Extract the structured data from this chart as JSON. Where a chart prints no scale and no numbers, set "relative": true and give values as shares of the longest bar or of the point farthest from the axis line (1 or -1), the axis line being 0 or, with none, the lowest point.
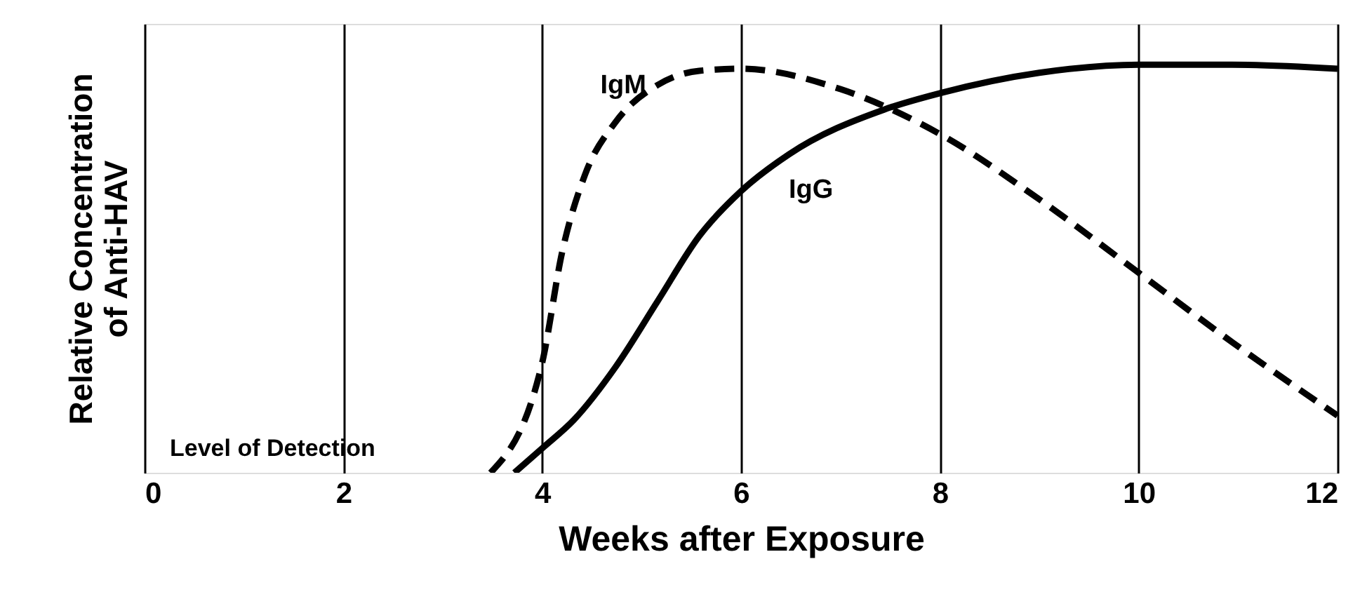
{
  "chart_data": {
    "type": "line",
    "relative": true,
    "xlabel": "Weeks after Exposure",
    "ylabel": "Relative Concentration\nof Anti-HAV",
    "xlim": [
      0,
      12
    ],
    "xticks": [
      0,
      2,
      4,
      6,
      8,
      10,
      12
    ],
    "grid": "x",
    "tick_labels": "x",
    "annotations": [
      "Level of Detection"
    ],
    "series": [
      {
        "name": "IgM",
        "color": "#000000",
        "line_style": "dashed",
        "x": [
          3.48,
          4,
          4.2,
          4.43,
          4.74,
          5.16,
          5.58,
          6,
          7,
          8,
          9,
          10,
          10.94,
          12
        ],
        "values": [
          0,
          0.27,
          0.54,
          0.73,
          0.86,
          0.95,
          0.985,
          0.99,
          0.94,
          0.83,
          0.67,
          0.49,
          0.32,
          0.14
        ]
      },
      {
        "name": "IgG",
        "color": "#000000",
        "line_style": "solid",
        "x": [
          3.72,
          4,
          4.32,
          4.74,
          5.16,
          5.58,
          6,
          6.48,
          7.44,
          8,
          9,
          10,
          10.94,
          12
        ],
        "values": [
          0,
          0.06,
          0.13,
          0.26,
          0.42,
          0.58,
          0.69,
          0.78,
          0.89,
          0.93,
          0.98,
          1.0,
          1.0,
          0.99
        ]
      }
    ]
  }
}
